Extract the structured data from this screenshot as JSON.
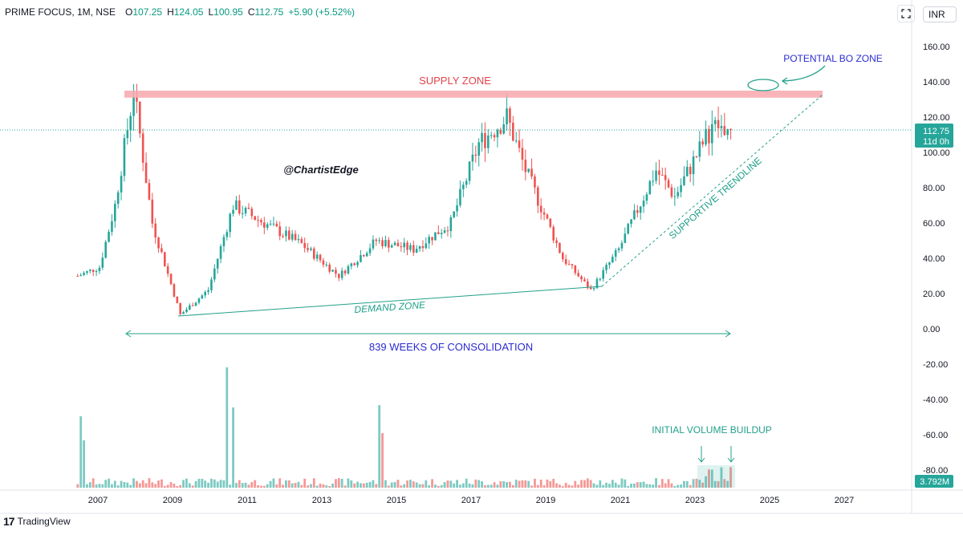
{
  "header": {
    "symbol": "PRIME FOCUS, 1M, NSE",
    "o_label": "O",
    "o_value": "107.25",
    "h_label": "H",
    "h_value": "124.05",
    "l_label": "L",
    "l_value": "100.95",
    "c_label": "C",
    "c_value": "112.75",
    "change": "+5.90 (+5.52%)"
  },
  "currency_button": "INR",
  "branding": "TradingView",
  "price_badge": {
    "price": "112.75",
    "countdown": "11d 0h"
  },
  "volume_badge": "3.792M",
  "colors": {
    "up": "#26a69a",
    "down": "#ef5350",
    "supply": "#f7a7ad",
    "annotation_teal": "#22a08a",
    "annotation_blue": "#2b2bd1",
    "axis_text": "#131722"
  },
  "chart_data": {
    "type": "candlestick",
    "timeframe": "1M",
    "y_axis": {
      "min": -100,
      "max": 165,
      "ticks": [
        "160.00",
        "140.00",
        "120.00",
        "100.00",
        "80.00",
        "60.00",
        "40.00",
        "20.00",
        "0.00",
        "-20.00",
        "-40.00",
        "-60.00",
        "-80.00"
      ]
    },
    "x_axis": {
      "ticks": [
        "2007",
        "2009",
        "2011",
        "2013",
        "2015",
        "2017",
        "2019",
        "2021",
        "2023",
        "2025",
        "2027"
      ]
    },
    "last_price": 112.75,
    "ohlc_yearly_anchors": [
      {
        "date": "2006-06",
        "close": 30
      },
      {
        "date": "2007-01",
        "close": 35
      },
      {
        "date": "2007-06",
        "close": 70
      },
      {
        "date": "2007-12",
        "close": 135
      },
      {
        "date": "2008-06",
        "close": 60
      },
      {
        "date": "2009-03",
        "close": 8
      },
      {
        "date": "2009-12",
        "close": 22
      },
      {
        "date": "2010-08",
        "close": 70
      },
      {
        "date": "2011-06",
        "close": 60
      },
      {
        "date": "2012-06",
        "close": 48
      },
      {
        "date": "2013-06",
        "close": 30
      },
      {
        "date": "2014-06",
        "close": 50
      },
      {
        "date": "2015-06",
        "close": 45
      },
      {
        "date": "2016-06",
        "close": 60
      },
      {
        "date": "2017-03",
        "close": 105
      },
      {
        "date": "2017-12",
        "close": 120
      },
      {
        "date": "2018-06",
        "close": 90
      },
      {
        "date": "2019-06",
        "close": 40
      },
      {
        "date": "2020-03",
        "close": 22
      },
      {
        "date": "2020-12",
        "close": 45
      },
      {
        "date": "2021-12",
        "close": 90
      },
      {
        "date": "2022-06",
        "close": 75
      },
      {
        "date": "2023-06",
        "close": 115
      },
      {
        "date": "2023-12",
        "close": 112.75
      }
    ],
    "annotations": {
      "supply_zone": {
        "label": "SUPPLY ZONE",
        "price_from": 131,
        "price_to": 135
      },
      "potential_bo": "POTENTIAL BO ZONE",
      "watermark": "@ChartistEdge",
      "demand_zone": "DEMAND ZONE",
      "trendline": "SUPPORTIVE TRENDLINE",
      "consolidation": "839 WEEKS OF CONSOLIDATION",
      "volume_note": "INITIAL VOLUME BUILDUP"
    }
  }
}
